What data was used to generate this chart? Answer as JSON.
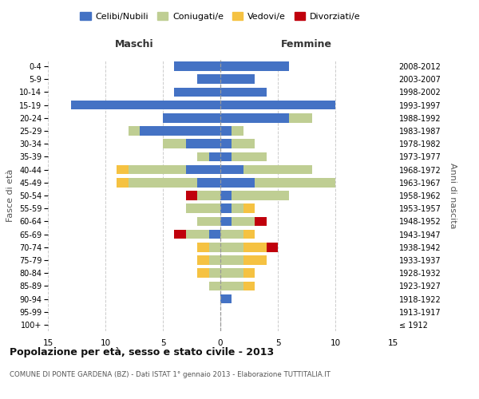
{
  "age_groups": [
    "100+",
    "95-99",
    "90-94",
    "85-89",
    "80-84",
    "75-79",
    "70-74",
    "65-69",
    "60-64",
    "55-59",
    "50-54",
    "45-49",
    "40-44",
    "35-39",
    "30-34",
    "25-29",
    "20-24",
    "15-19",
    "10-14",
    "5-9",
    "0-4"
  ],
  "birth_years": [
    "≤ 1912",
    "1913-1917",
    "1918-1922",
    "1923-1927",
    "1928-1932",
    "1933-1937",
    "1938-1942",
    "1943-1947",
    "1948-1952",
    "1953-1957",
    "1958-1962",
    "1963-1967",
    "1968-1972",
    "1973-1977",
    "1978-1982",
    "1983-1987",
    "1988-1992",
    "1993-1997",
    "1998-2002",
    "2003-2007",
    "2008-2012"
  ],
  "male_celibe": [
    0,
    0,
    0,
    0,
    0,
    0,
    0,
    1,
    0,
    0,
    0,
    2,
    3,
    1,
    3,
    7,
    5,
    13,
    4,
    2,
    4
  ],
  "male_coniugato": [
    0,
    0,
    0,
    1,
    1,
    1,
    1,
    2,
    2,
    3,
    2,
    6,
    5,
    1,
    2,
    1,
    0,
    0,
    0,
    0,
    0
  ],
  "male_vedovo": [
    0,
    0,
    0,
    0,
    1,
    1,
    1,
    0,
    0,
    0,
    0,
    1,
    1,
    0,
    0,
    0,
    0,
    0,
    0,
    0,
    0
  ],
  "male_divorziato": [
    0,
    0,
    0,
    0,
    0,
    0,
    0,
    1,
    0,
    0,
    1,
    0,
    0,
    0,
    0,
    0,
    0,
    0,
    0,
    0,
    0
  ],
  "female_nubile": [
    0,
    0,
    1,
    0,
    0,
    0,
    0,
    0,
    1,
    1,
    1,
    3,
    2,
    1,
    1,
    1,
    6,
    10,
    4,
    3,
    6
  ],
  "female_coniugata": [
    0,
    0,
    0,
    2,
    2,
    2,
    2,
    2,
    2,
    1,
    5,
    7,
    6,
    3,
    2,
    1,
    2,
    0,
    0,
    0,
    0
  ],
  "female_vedova": [
    0,
    0,
    0,
    1,
    1,
    2,
    2,
    1,
    0,
    1,
    0,
    0,
    0,
    0,
    0,
    0,
    0,
    0,
    0,
    0,
    0
  ],
  "female_divorziata": [
    0,
    0,
    0,
    0,
    0,
    0,
    1,
    0,
    1,
    0,
    0,
    0,
    0,
    0,
    0,
    0,
    0,
    0,
    0,
    0,
    0
  ],
  "color_celibe": "#4472C4",
  "color_coniugato": "#BFCE93",
  "color_vedovo": "#F5C242",
  "color_divorziato": "#C0000C",
  "xlim": 15,
  "title": "Popolazione per età, sesso e stato civile - 2013",
  "subtitle": "COMUNE DI PONTE GARDENA (BZ) - Dati ISTAT 1° gennaio 2013 - Elaborazione TUTTITALIA.IT",
  "ylabel_left": "Fasce di età",
  "ylabel_right": "Anni di nascita",
  "label_maschi": "Maschi",
  "label_femmine": "Femmine",
  "legend_labels": [
    "Celibi/Nubili",
    "Coniugati/e",
    "Vedovi/e",
    "Divorziati/e"
  ],
  "bg_color": "#ffffff",
  "grid_color": "#cccccc"
}
